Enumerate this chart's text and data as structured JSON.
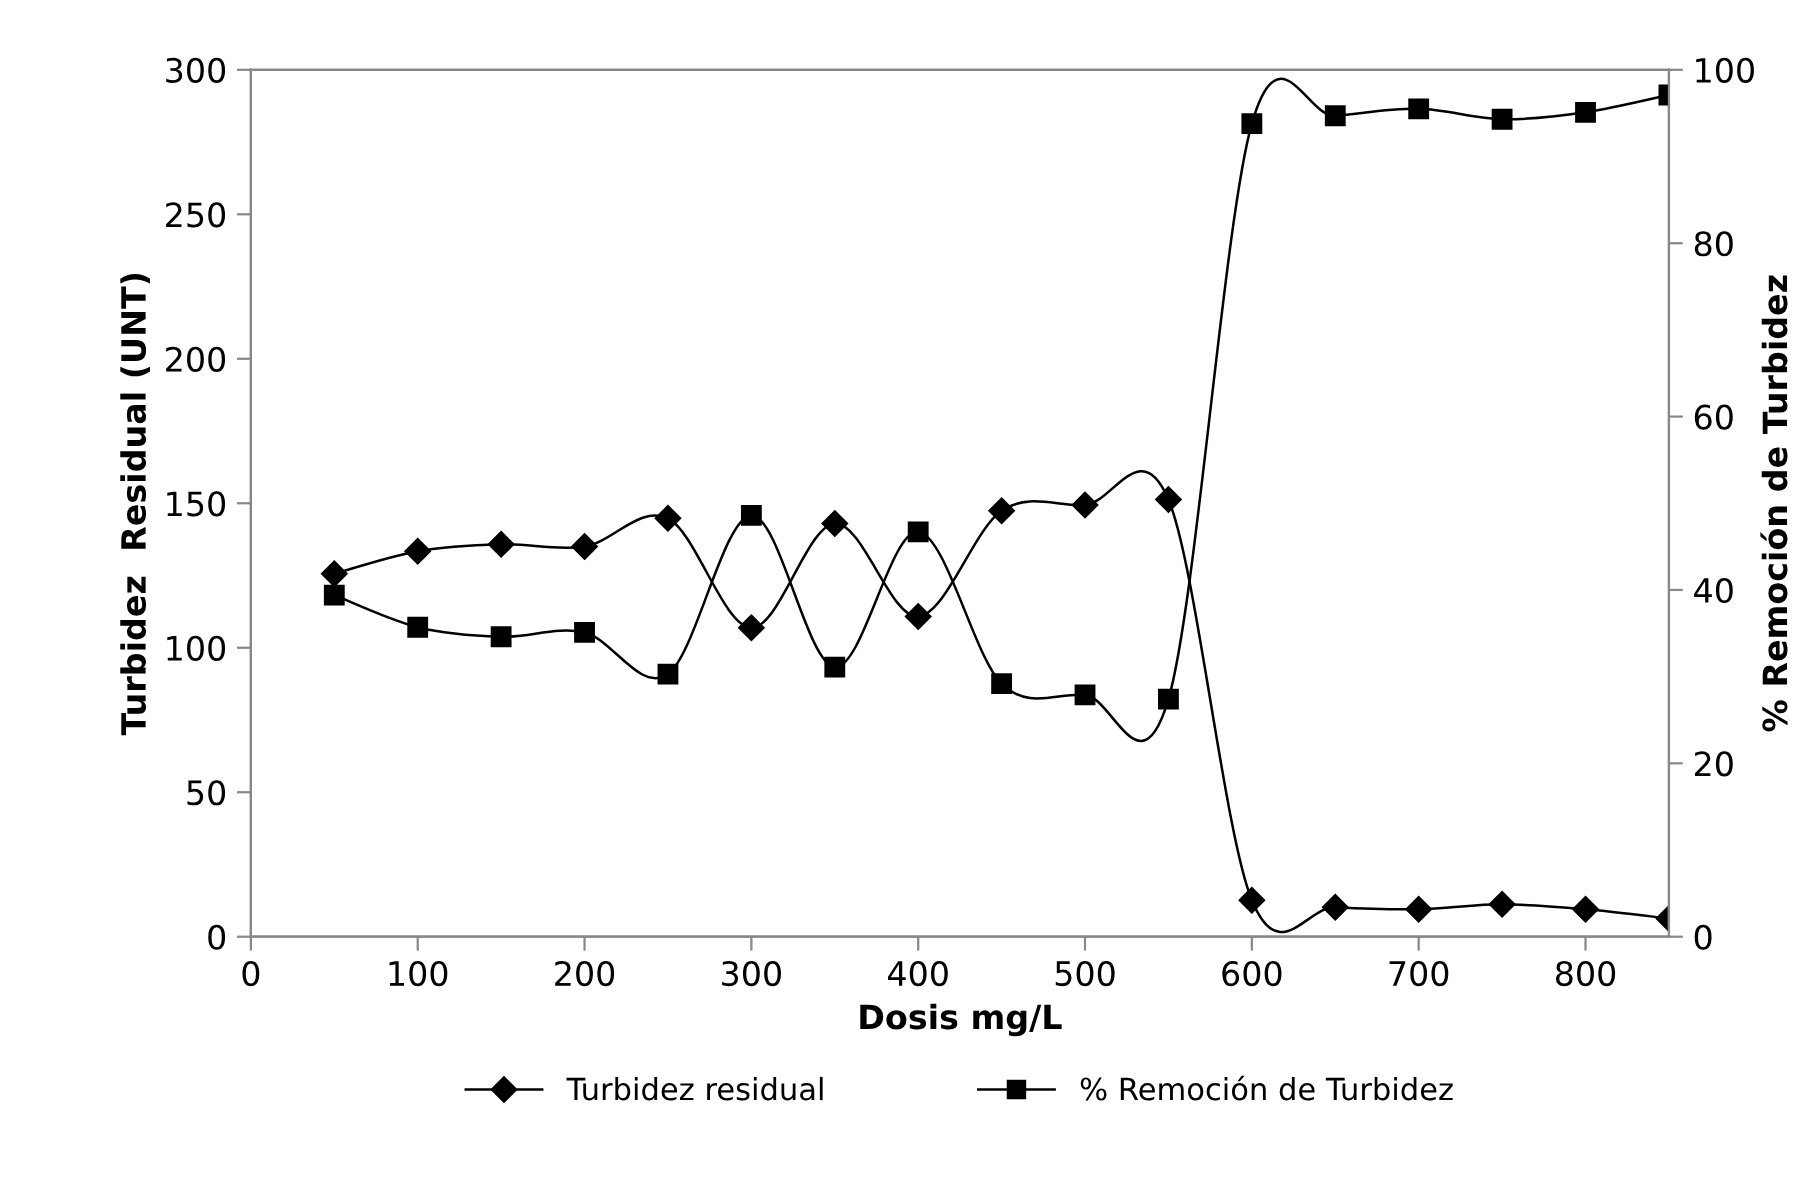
{
  "chart_data": {
    "type": "line",
    "xlabel": "Dosis mg/L",
    "ylabel": "Turbidez  Residual (UNT)",
    "y2label": "% Remoción de Turbidez",
    "x": [
      50,
      100,
      150,
      200,
      250,
      300,
      350,
      400,
      450,
      500,
      550,
      600,
      650,
      700,
      750,
      800,
      850
    ],
    "series": [
      {
        "name": "Turbidez residual",
        "color": "#000000",
        "marker": "diamond",
        "values": [
          125.6,
          133.4,
          135.8,
          135,
          144.8,
          106.9,
          143,
          110.8,
          147.4,
          149.4,
          151.3,
          12.6,
          10.2,
          9.5,
          11.2,
          9.5,
          6.3
        ]
      },
      {
        "name": "% Remoción de Turbidez",
        "color": "#000000",
        "marker": "square",
        "axis": "y2",
        "values": [
          39.4,
          35.7,
          34.6,
          35.1,
          30.3,
          48.6,
          31.1,
          46.7,
          29.2,
          27.9,
          27.4,
          93.8,
          94.7,
          95.5,
          94.3,
          95.1,
          97.1
        ]
      }
    ],
    "xlim": [
      0,
      850
    ],
    "xticks": [
      0,
      100,
      200,
      300,
      400,
      500,
      600,
      700,
      800
    ],
    "ylim": [
      0,
      300
    ],
    "yticks": [
      0,
      50,
      100,
      150,
      200,
      250,
      300
    ],
    "y2lim": [
      0,
      100
    ],
    "y2ticks": [
      0,
      20,
      40,
      60,
      80,
      100
    ],
    "grid": false,
    "legend": "bottom",
    "line_style": "solid"
  }
}
